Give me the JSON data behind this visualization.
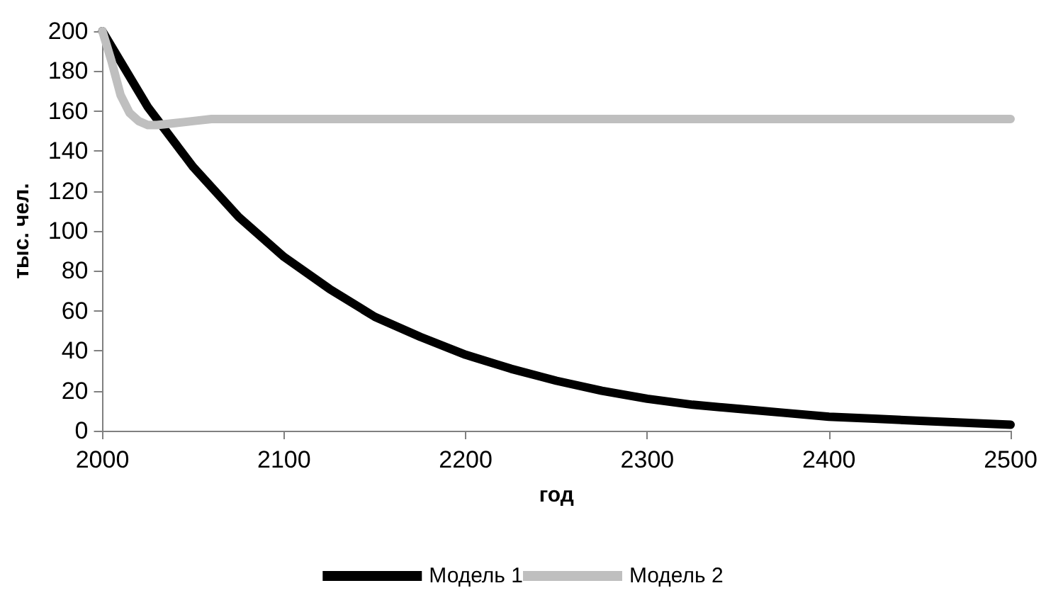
{
  "chart_data": {
    "type": "line",
    "xlabel": "год",
    "ylabel": "тыс. чел.",
    "xlim": [
      2000,
      2500
    ],
    "xticks": [
      2000,
      2100,
      2200,
      2300,
      2400,
      2500
    ],
    "ylim": [
      0,
      200
    ],
    "yticks": [
      0,
      20,
      40,
      60,
      80,
      100,
      120,
      140,
      160,
      180,
      200
    ],
    "grid": false,
    "legend": "bottom",
    "marker": "none",
    "line_style": "solid",
    "series": [
      {
        "name": "Модель 1",
        "color": "#000000",
        "x": [
          2000,
          2025,
          2050,
          2075,
          2100,
          2125,
          2150,
          2175,
          2200,
          2225,
          2250,
          2275,
          2300,
          2325,
          2350,
          2375,
          2400,
          2425,
          2450,
          2475,
          2500
        ],
        "values": [
          200,
          162,
          132,
          107,
          87,
          71,
          57,
          47,
          38,
          31,
          25,
          20,
          16,
          13,
          11,
          9,
          7,
          6,
          5,
          4,
          3
        ]
      },
      {
        "name": "Модель 2",
        "color": "#bfbfbf",
        "x": [
          2000,
          2005,
          2010,
          2015,
          2020,
          2025,
          2030,
          2040,
          2050,
          2060,
          2100,
          2200,
          2300,
          2400,
          2500
        ],
        "values": [
          200,
          185,
          168,
          159,
          155,
          153,
          153,
          154,
          155,
          156,
          156,
          156,
          156,
          156,
          156
        ]
      }
    ]
  }
}
